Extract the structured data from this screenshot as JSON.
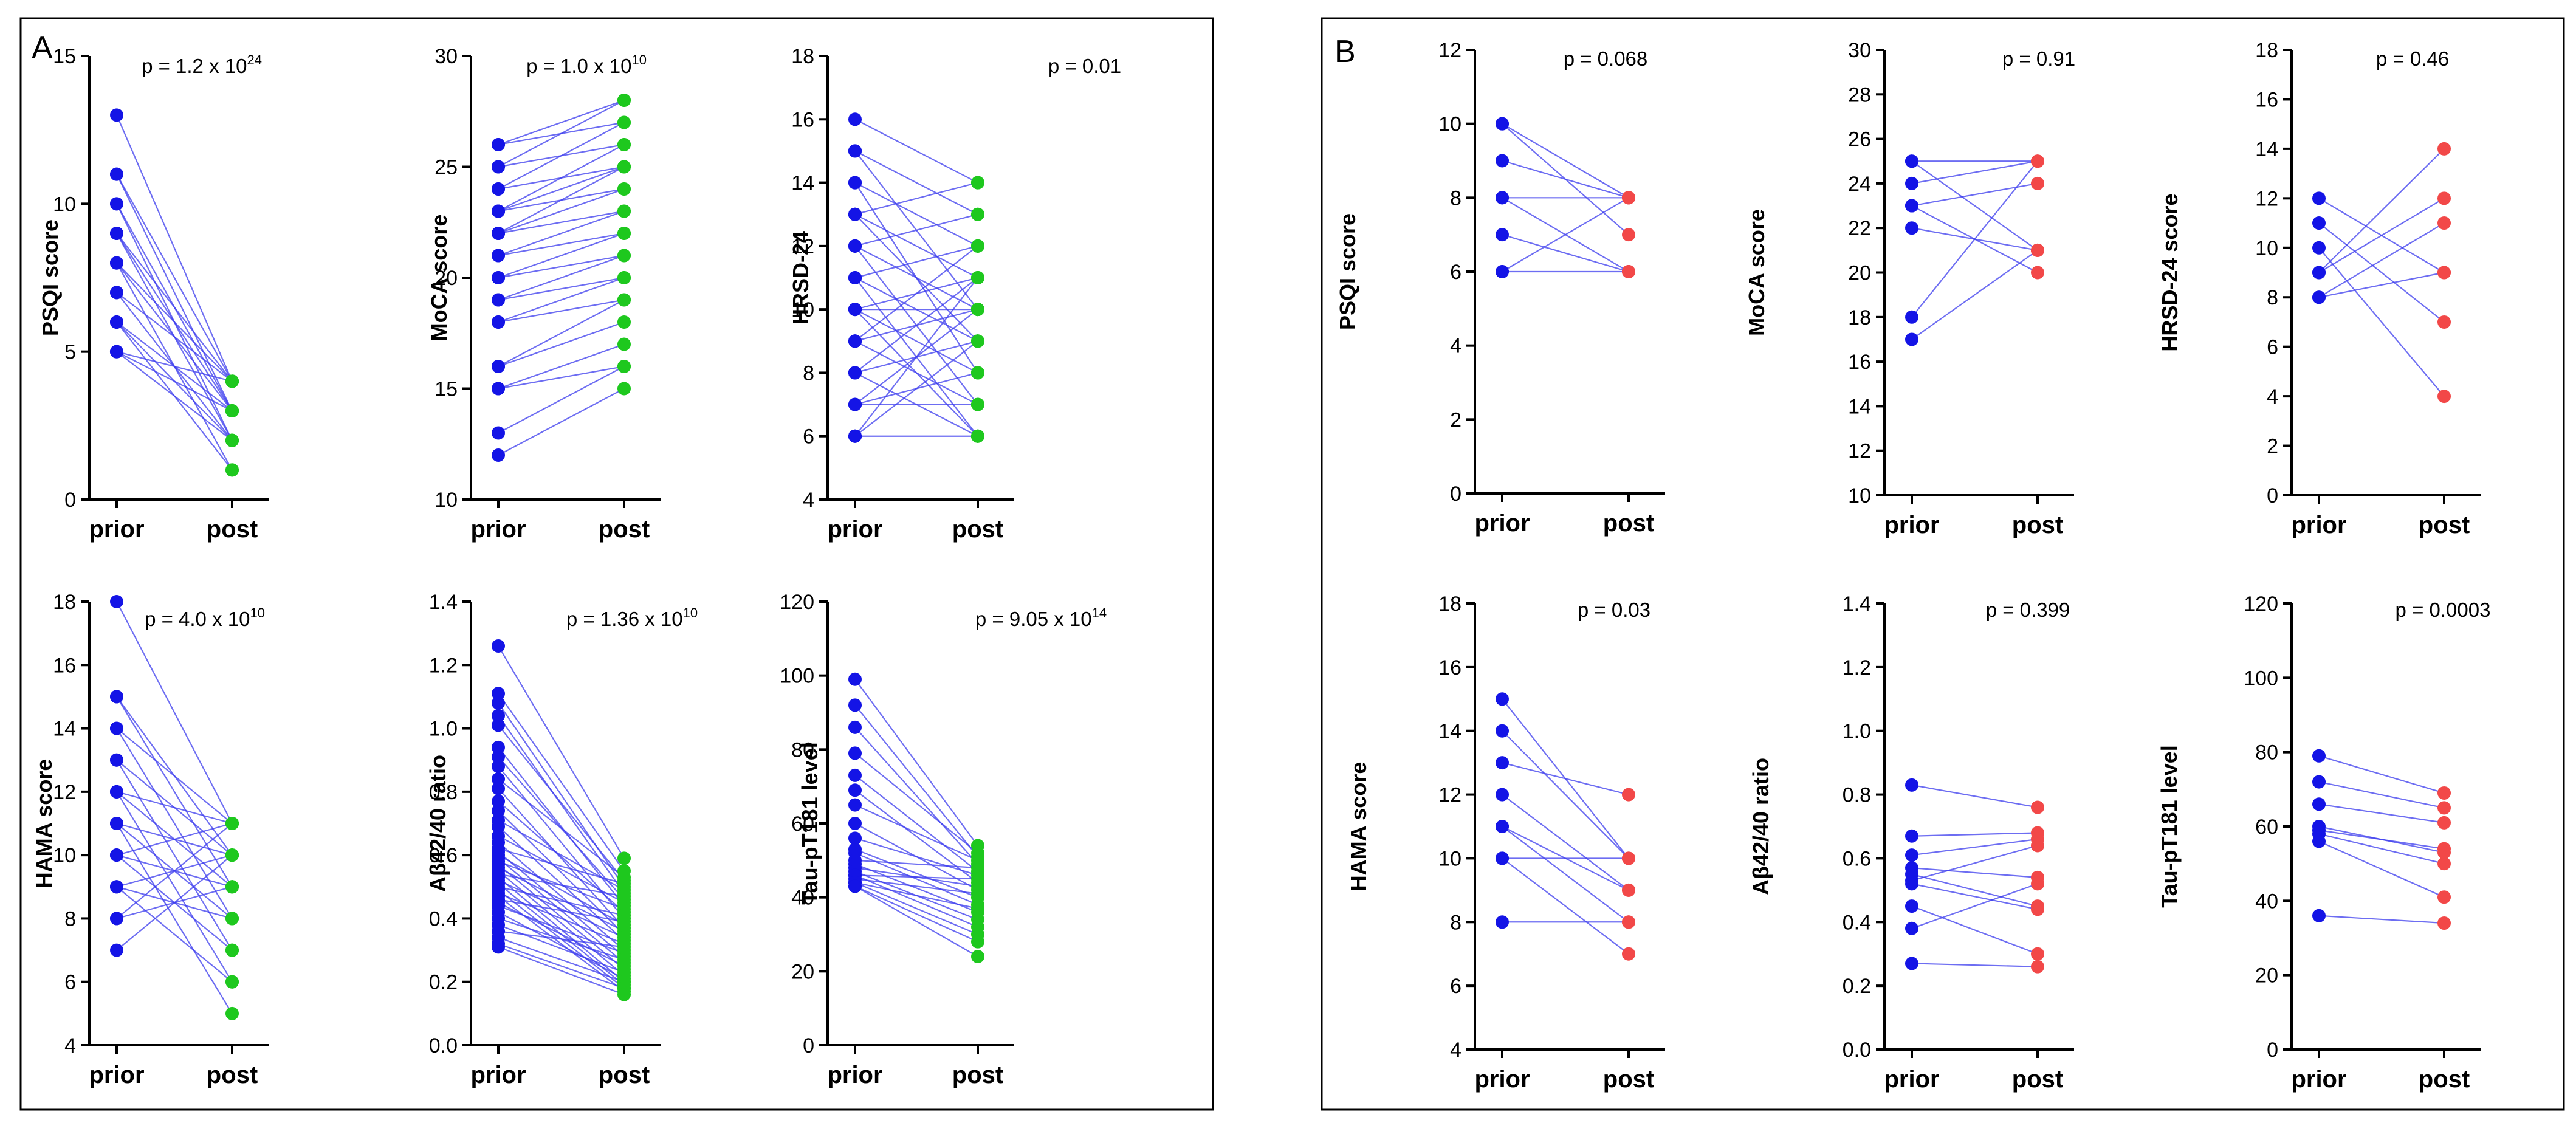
{
  "colors": {
    "prior": "#1414e6",
    "line": "#3c3cee",
    "post_A": "#1ec81e",
    "post_B": "#f24848",
    "frame": "#000000"
  },
  "chart_data": [
    {
      "panel": "A",
      "type": "line",
      "title": "",
      "ylabel": "PSQI score",
      "ylim": [
        0,
        15
      ],
      "yticks": [
        0,
        5,
        10,
        15
      ],
      "categories": [
        "prior",
        "post"
      ],
      "pvalue": {
        "base": "p = 1.2 x 10",
        "exp": "24"
      },
      "prior": [
        13,
        11,
        11,
        10,
        10,
        9,
        9,
        9,
        8,
        8,
        8,
        7,
        7,
        6,
        6,
        6,
        5,
        5,
        5
      ],
      "post": [
        4,
        3,
        4,
        3,
        2,
        4,
        3,
        2,
        4,
        3,
        1,
        2,
        4,
        3,
        2,
        1,
        4,
        3,
        2
      ]
    },
    {
      "panel": "A",
      "type": "line",
      "title": "",
      "ylabel": "MoCA score",
      "ylim": [
        10,
        30
      ],
      "yticks": [
        10,
        15,
        20,
        25,
        30
      ],
      "categories": [
        "prior",
        "post"
      ],
      "pvalue": {
        "base": "p = 1.0 x 10",
        "exp": "10"
      },
      "prior": [
        26,
        26,
        25,
        25,
        24,
        24,
        23,
        23,
        23,
        22,
        22,
        22,
        21,
        21,
        20,
        20,
        19,
        19,
        18,
        18,
        16,
        16,
        15,
        15,
        13,
        12
      ],
      "post": [
        28,
        27,
        28,
        26,
        27,
        25,
        26,
        25,
        24,
        25,
        23,
        24,
        22,
        23,
        22,
        21,
        20,
        21,
        19,
        20,
        18,
        19,
        17,
        16,
        16,
        15
      ]
    },
    {
      "panel": "A",
      "type": "line",
      "title": "",
      "ylabel": "HRSD-24",
      "ylim": [
        4,
        18
      ],
      "yticks": [
        4,
        6,
        8,
        10,
        12,
        14,
        16,
        18
      ],
      "categories": [
        "prior",
        "post"
      ],
      "pvalue": {
        "base": "p = 0.01",
        "exp": ""
      },
      "prior": [
        16,
        15,
        15,
        14,
        14,
        13,
        13,
        13,
        12,
        12,
        12,
        11,
        11,
        11,
        10,
        10,
        10,
        10,
        9,
        9,
        9,
        8,
        8,
        8,
        7,
        7,
        7,
        6,
        6,
        6
      ],
      "post": [
        14,
        13,
        10,
        12,
        8,
        14,
        9,
        11,
        10,
        7,
        13,
        12,
        6,
        9,
        11,
        8,
        10,
        6,
        12,
        7,
        10,
        11,
        9,
        6,
        8,
        10,
        7,
        9,
        11,
        6
      ]
    },
    {
      "panel": "A",
      "type": "line",
      "title": "",
      "ylabel": "HAMA score",
      "ylim": [
        4,
        18
      ],
      "yticks": [
        4,
        6,
        8,
        10,
        12,
        14,
        16,
        18
      ],
      "categories": [
        "prior",
        "post"
      ],
      "pvalue": {
        "base": "p = 4.0 x 10",
        "exp": "10"
      },
      "prior": [
        18,
        15,
        15,
        14,
        14,
        13,
        13,
        12,
        12,
        12,
        11,
        11,
        11,
        10,
        10,
        10,
        9,
        9,
        9,
        8,
        8,
        7
      ],
      "post": [
        11,
        10,
        9,
        11,
        8,
        10,
        7,
        11,
        9,
        6,
        10,
        8,
        5,
        11,
        9,
        7,
        10,
        8,
        6,
        11,
        9,
        10
      ]
    },
    {
      "panel": "A",
      "type": "line",
      "title": "",
      "ylabel": "Aβ42/40 ratio",
      "ylim": [
        0.0,
        1.4
      ],
      "yticks": [
        0.0,
        0.2,
        0.4,
        0.6,
        0.8,
        1.0,
        1.2,
        1.4
      ],
      "categories": [
        "prior",
        "post"
      ],
      "pvalue": {
        "base": "p = 1.36 x 10",
        "exp": "10"
      },
      "prior": [
        1.26,
        1.11,
        1.08,
        1.04,
        1.01,
        0.94,
        0.91,
        0.88,
        0.84,
        0.81,
        0.77,
        0.74,
        0.71,
        0.69,
        0.66,
        0.64,
        0.62,
        0.61,
        0.6,
        0.59,
        0.58,
        0.57,
        0.56,
        0.55,
        0.54,
        0.53,
        0.52,
        0.51,
        0.5,
        0.49,
        0.48,
        0.47,
        0.46,
        0.45,
        0.44,
        0.42,
        0.4,
        0.38,
        0.36,
        0.34,
        0.32,
        0.31
      ],
      "post": [
        0.59,
        0.55,
        0.5,
        0.48,
        0.52,
        0.44,
        0.46,
        0.4,
        0.53,
        0.37,
        0.42,
        0.35,
        0.49,
        0.33,
        0.45,
        0.3,
        0.51,
        0.28,
        0.38,
        0.26,
        0.43,
        0.24,
        0.36,
        0.22,
        0.47,
        0.2,
        0.34,
        0.19,
        0.41,
        0.18,
        0.32,
        0.17,
        0.39,
        0.25,
        0.29,
        0.21,
        0.27,
        0.23,
        0.31,
        0.2,
        0.18,
        0.16
      ]
    },
    {
      "panel": "A",
      "type": "line",
      "title": "",
      "ylabel": "Tau-pT181 level",
      "ylim": [
        0,
        120
      ],
      "yticks": [
        0,
        20,
        40,
        60,
        80,
        100,
        120
      ],
      "categories": [
        "prior",
        "post"
      ],
      "pvalue": {
        "base": "p = 9.05 x 10",
        "exp": "14"
      },
      "prior": [
        99,
        92,
        86,
        79,
        73,
        69,
        65,
        60,
        56,
        53,
        52,
        50,
        49,
        48,
        47,
        46,
        46,
        45,
        44,
        44,
        43,
        43
      ],
      "post": [
        54,
        51,
        49,
        52,
        47,
        44,
        50,
        42,
        46,
        40,
        38,
        48,
        36,
        43,
        34,
        45,
        32,
        41,
        30,
        37,
        28,
        24
      ]
    },
    {
      "panel": "B",
      "type": "line",
      "title": "",
      "ylabel": "PSQI score",
      "ylim": [
        0,
        12
      ],
      "yticks": [
        0,
        2,
        4,
        6,
        8,
        10,
        12
      ],
      "categories": [
        "prior",
        "post"
      ],
      "pvalue": {
        "base": "p = 0.068",
        "exp": ""
      },
      "prior": [
        10,
        10,
        9,
        8,
        8,
        7,
        6,
        6
      ],
      "post": [
        8,
        7,
        8,
        8,
        6,
        6,
        8,
        6
      ]
    },
    {
      "panel": "B",
      "type": "line",
      "title": "",
      "ylabel": "MoCA score",
      "ylim": [
        10,
        30
      ],
      "yticks": [
        10,
        12,
        14,
        16,
        18,
        20,
        22,
        24,
        26,
        28,
        30
      ],
      "categories": [
        "prior",
        "post"
      ],
      "pvalue": {
        "base": "p = 0.91",
        "exp": ""
      },
      "prior": [
        25,
        25,
        24,
        23,
        23,
        22,
        18,
        17
      ],
      "post": [
        25,
        21,
        25,
        24,
        20,
        21,
        25,
        21
      ]
    },
    {
      "panel": "B",
      "type": "line",
      "title": "",
      "ylabel": "HRSD-24 score",
      "ylim": [
        0,
        18
      ],
      "yticks": [
        0,
        2,
        4,
        6,
        8,
        10,
        12,
        14,
        16,
        18
      ],
      "categories": [
        "prior",
        "post"
      ],
      "pvalue": {
        "base": "p = 0.46",
        "exp": ""
      },
      "prior": [
        12,
        11,
        10,
        9,
        9,
        8,
        8
      ],
      "post": [
        9,
        7,
        4,
        12,
        14,
        11,
        9
      ]
    },
    {
      "panel": "B",
      "type": "line",
      "title": "",
      "ylabel": "HAMA score",
      "ylim": [
        4,
        18
      ],
      "yticks": [
        4,
        6,
        8,
        10,
        12,
        14,
        16,
        18
      ],
      "categories": [
        "prior",
        "post"
      ],
      "pvalue": {
        "base": "p = 0.03",
        "exp": ""
      },
      "prior": [
        15,
        14,
        13,
        12,
        11,
        11,
        10,
        10,
        8
      ],
      "post": [
        10,
        10,
        12,
        9,
        8,
        9,
        10,
        7,
        8
      ]
    },
    {
      "panel": "B",
      "type": "line",
      "title": "",
      "ylabel": "Aβ42/40 ratio",
      "ylim": [
        0.0,
        1.4
      ],
      "yticks": [
        0.0,
        0.2,
        0.4,
        0.6,
        0.8,
        1.0,
        1.2,
        1.4
      ],
      "categories": [
        "prior",
        "post"
      ],
      "pvalue": {
        "base": "p = 0.399",
        "exp": ""
      },
      "prior": [
        0.83,
        0.67,
        0.61,
        0.57,
        0.55,
        0.53,
        0.52,
        0.45,
        0.38,
        0.27
      ],
      "post": [
        0.76,
        0.68,
        0.66,
        0.54,
        0.45,
        0.64,
        0.44,
        0.3,
        0.52,
        0.26
      ]
    },
    {
      "panel": "B",
      "type": "line",
      "title": "",
      "ylabel": "Tau-pT181 level",
      "ylim": [
        0,
        120
      ],
      "yticks": [
        0,
        20,
        40,
        60,
        80,
        100,
        120
      ],
      "categories": [
        "prior",
        "post"
      ],
      "pvalue": {
        "base": "p = 0.0003",
        "exp": ""
      },
      "prior": [
        79,
        72,
        66,
        60,
        59,
        58,
        56,
        36
      ],
      "post": [
        69,
        65,
        61,
        53,
        54,
        50,
        41,
        34
      ]
    }
  ],
  "panel_labels": [
    "A",
    "B"
  ]
}
